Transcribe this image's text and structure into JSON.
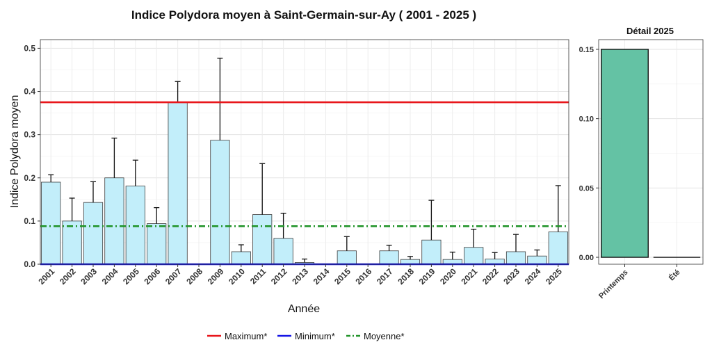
{
  "chart_data": [
    {
      "type": "bar",
      "title": "Indice Polydora moyen à Saint-Germain-sur-Ay ( 2001 - 2025 )",
      "xlabel": "Année",
      "ylabel": "Indice Polydora moyen",
      "ylim": [
        0,
        0.52
      ],
      "yticks": [
        0.0,
        0.1,
        0.2,
        0.3,
        0.4,
        0.5
      ],
      "ytick_labels": [
        "0.0",
        "0.1",
        "0.2",
        "0.3",
        "0.4",
        "0.5"
      ],
      "grid": true,
      "categories": [
        "2001",
        "2002",
        "2003",
        "2004",
        "2005",
        "2006",
        "2007",
        "2008",
        "2009",
        "2010",
        "2011",
        "2012",
        "2013",
        "2014",
        "2015",
        "2016",
        "2017",
        "2018",
        "2019",
        "2020",
        "2021",
        "2022",
        "2023",
        "2024",
        "2025"
      ],
      "values": [
        0.19,
        0.1,
        0.143,
        0.2,
        0.181,
        0.094,
        0.375,
        null,
        0.287,
        0.029,
        0.115,
        0.06,
        0.004,
        null,
        0.031,
        null,
        0.031,
        0.011,
        0.056,
        0.011,
        0.039,
        0.012,
        0.029,
        0.019,
        0.075
      ],
      "error_upper": [
        0.207,
        0.153,
        0.191,
        0.292,
        0.241,
        0.131,
        0.423,
        null,
        0.477,
        0.045,
        0.233,
        0.118,
        0.012,
        null,
        0.064,
        null,
        0.044,
        0.018,
        0.148,
        0.028,
        0.081,
        0.027,
        0.069,
        0.033,
        0.182
      ],
      "bar_color": "#c2eefa",
      "reference_lines": [
        {
          "name": "Maximum*",
          "value": 0.375,
          "color": "#e8161b",
          "style": "solid"
        },
        {
          "name": "Minimum*",
          "value": 0.0,
          "color": "#1515e6",
          "style": "solid"
        },
        {
          "name": "Moyenne*",
          "value": 0.088,
          "color": "#22942a",
          "style": "dashdot"
        }
      ],
      "legend_position": "bottom"
    },
    {
      "type": "bar",
      "title": "Détail 2025",
      "categories": [
        "Printemps",
        "Été"
      ],
      "values": [
        0.15,
        0.0
      ],
      "ylim": [
        -0.005,
        0.157
      ],
      "yticks": [
        0.0,
        0.05,
        0.1,
        0.15
      ],
      "ytick_labels": [
        "0.00",
        "0.05",
        "0.10",
        "0.15"
      ],
      "grid": true,
      "bar_color": "#64c2a4"
    }
  ]
}
